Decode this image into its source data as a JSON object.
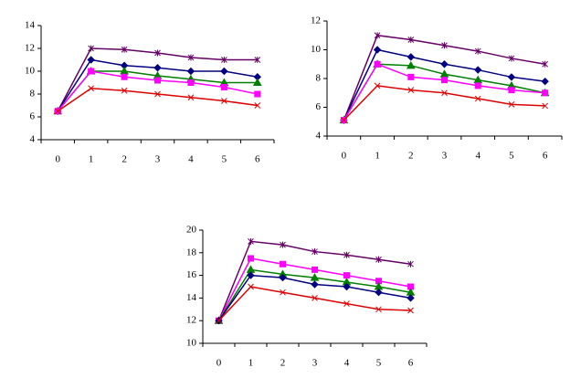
{
  "chart_data": [
    {
      "type": "line",
      "categories": [
        "0",
        "1",
        "2",
        "3",
        "4",
        "5",
        "6"
      ],
      "ylim": [
        4,
        14
      ],
      "yticks": [
        4,
        6,
        8,
        10,
        12,
        14
      ],
      "series": [
        {
          "color": "#660066",
          "marker": "star",
          "values": [
            6.5,
            12,
            11.9,
            11.6,
            11.2,
            11,
            11
          ]
        },
        {
          "color": "#000080",
          "marker": "diamond",
          "values": [
            6.5,
            11,
            10.5,
            10.3,
            10,
            10,
            9.5
          ]
        },
        {
          "color": "#008000",
          "marker": "triangle",
          "values": [
            6.5,
            10,
            10,
            9.6,
            9.3,
            9,
            9
          ]
        },
        {
          "color": "#ff00ff",
          "marker": "square",
          "values": [
            6.5,
            10,
            9.5,
            9.2,
            9,
            8.6,
            8
          ]
        },
        {
          "color": "#dd0000",
          "marker": "x",
          "values": [
            6.5,
            8.5,
            8.3,
            8,
            7.7,
            7.4,
            7
          ]
        }
      ]
    },
    {
      "type": "line",
      "categories": [
        "0",
        "1",
        "2",
        "3",
        "4",
        "5",
        "6"
      ],
      "ylim": [
        4,
        12
      ],
      "yticks": [
        4,
        6,
        8,
        10,
        12
      ],
      "series": [
        {
          "color": "#660066",
          "marker": "star",
          "values": [
            5.1,
            11,
            10.7,
            10.3,
            9.9,
            9.4,
            9
          ]
        },
        {
          "color": "#000080",
          "marker": "diamond",
          "values": [
            5.1,
            10,
            9.5,
            9,
            8.6,
            8.1,
            7.8
          ]
        },
        {
          "color": "#008000",
          "marker": "triangle",
          "values": [
            5.1,
            9,
            8.9,
            8.3,
            7.9,
            7.5,
            7
          ]
        },
        {
          "color": "#ff00ff",
          "marker": "square",
          "values": [
            5.1,
            9,
            8.1,
            7.9,
            7.5,
            7.2,
            7
          ]
        },
        {
          "color": "#dd0000",
          "marker": "x",
          "values": [
            5.1,
            7.5,
            7.2,
            7,
            6.6,
            6.2,
            6.1
          ]
        }
      ]
    },
    {
      "type": "line",
      "categories": [
        "0",
        "1",
        "2",
        "3",
        "4",
        "5",
        "6"
      ],
      "ylim": [
        10,
        20
      ],
      "yticks": [
        10,
        12,
        14,
        16,
        18,
        20
      ],
      "series": [
        {
          "color": "#660066",
          "marker": "star",
          "values": [
            12,
            19,
            18.7,
            18.1,
            17.8,
            17.4,
            17
          ]
        },
        {
          "color": "#ff00ff",
          "marker": "square",
          "values": [
            12,
            17.5,
            17,
            16.5,
            16,
            15.5,
            15
          ]
        },
        {
          "color": "#008000",
          "marker": "triangle",
          "values": [
            12,
            16.5,
            16.1,
            15.8,
            15.4,
            15,
            14.5
          ]
        },
        {
          "color": "#000080",
          "marker": "diamond",
          "values": [
            12,
            16,
            15.8,
            15.2,
            15,
            14.5,
            14
          ]
        },
        {
          "color": "#dd0000",
          "marker": "x",
          "values": [
            12,
            15,
            14.5,
            14,
            13.5,
            13,
            12.9
          ]
        }
      ]
    }
  ]
}
